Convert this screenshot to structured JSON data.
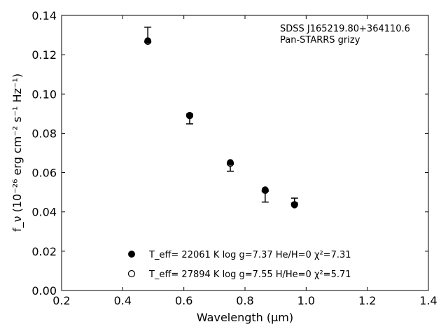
{
  "chart_data": {
    "type": "scatter",
    "xlabel": "Wavelength (μm)",
    "ylabel": "f_ν (10⁻²⁶ erg cm⁻² s⁻¹ Hz⁻¹)",
    "xlim": [
      0.2,
      1.4
    ],
    "ylim": [
      0.0,
      0.14
    ],
    "x_ticks": [
      "0.2",
      "0.4",
      "0.6",
      "0.8",
      "1.0",
      "1.2",
      "1.4"
    ],
    "y_ticks": [
      "0.00",
      "0.02",
      "0.04",
      "0.06",
      "0.08",
      "0.10",
      "0.12",
      "0.14"
    ],
    "annotation": [
      "SDSS J165219.80+364110.6",
      "Pan-STARRS grizy"
    ],
    "observed": {
      "x": [
        0.482,
        0.619,
        0.752,
        0.866,
        0.962
      ],
      "y": [
        0.1265,
        0.0898,
        0.0642,
        0.0505,
        0.0445
      ],
      "yerr_low": [
        0.0,
        0.005,
        0.0035,
        0.0055,
        0.0
      ],
      "yerr_high": [
        0.0075,
        0.0,
        0.0,
        0.0,
        0.0025
      ]
    },
    "series": [
      {
        "label": "T_eff= 22061 K  log g=7.37  He/H=0  χ²=7.31",
        "marker": "filled-circle",
        "x": [
          0.482,
          0.619,
          0.752,
          0.866,
          0.962
        ],
        "y": [
          0.1272,
          0.0892,
          0.0652,
          0.0513,
          0.0435
        ]
      },
      {
        "label": "T_eff= 27894 K  log g=7.55  H/He=0  χ²=5.71",
        "marker": "open-circle",
        "x": [
          0.482,
          0.619,
          0.752,
          0.866,
          0.962
        ],
        "y": [
          0.1268,
          0.089,
          0.0648,
          0.051,
          0.0437
        ]
      }
    ],
    "legend_position": "lower-center",
    "grid": false
  }
}
